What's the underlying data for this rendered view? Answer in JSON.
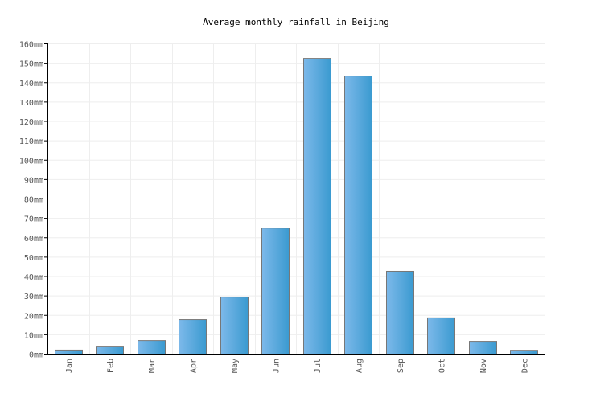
{
  "chart_data": {
    "type": "bar",
    "title": "Average monthly rainfall in Beijing",
    "xlabel": "",
    "ylabel": "",
    "categories": [
      "Jan",
      "Feb",
      "Mar",
      "Apr",
      "May",
      "Jun",
      "Jul",
      "Aug",
      "Sep",
      "Oct",
      "Nov",
      "Dec"
    ],
    "values": [
      2.1,
      4.1,
      7,
      17.8,
      29.4,
      65,
      152.5,
      143.4,
      42.7,
      18.7,
      6.6,
      2
    ],
    "ylim": [
      0,
      160
    ],
    "y_tick_step": 10,
    "y_unit": "mm",
    "grid": true,
    "legend": "none",
    "colors": {
      "bar_left": "#7db9ea",
      "bar_right": "#3a9ad0",
      "bar_border": "#777777",
      "grid": "#eeeeee"
    }
  }
}
